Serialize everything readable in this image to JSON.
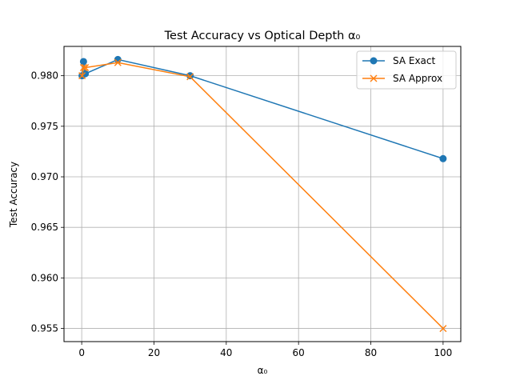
{
  "chart_data": {
    "type": "line",
    "title": "Test Accuracy vs Optical Depth α₀",
    "xlabel": "α₀",
    "ylabel": "Test Accuracy",
    "xlim": [
      -4.9,
      104.9
    ],
    "ylim": [
      0.9537,
      0.9829
    ],
    "xticks": [
      0,
      20,
      40,
      60,
      80,
      100
    ],
    "yticks": [
      0.955,
      0.96,
      0.965,
      0.97,
      0.975,
      0.98
    ],
    "ytick_labels": [
      "0.955",
      "0.960",
      "0.965",
      "0.970",
      "0.975",
      "0.980"
    ],
    "grid": true,
    "legend_position": "upper right",
    "series": [
      {
        "name": "SA Exact",
        "color": "#1f77b4",
        "marker": "circle",
        "x": [
          0.1,
          0.5,
          1,
          10,
          30,
          100
        ],
        "y": [
          0.98,
          0.9814,
          0.9802,
          0.9816,
          0.98,
          0.9718
        ]
      },
      {
        "name": "SA Approx",
        "color": "#ff7f0e",
        "marker": "x",
        "x": [
          0.1,
          0.5,
          1,
          10,
          30,
          100
        ],
        "y": [
          0.98,
          0.9808,
          0.9808,
          0.9813,
          0.9799,
          0.955
        ]
      }
    ]
  }
}
